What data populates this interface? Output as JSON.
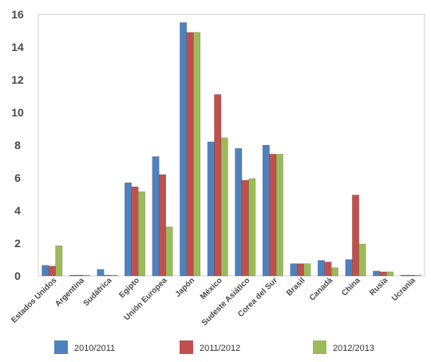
{
  "chart_data": {
    "type": "bar",
    "categories": [
      "Estados Unidos",
      "Argentina",
      "Sudáfrica",
      "Egipto",
      "Unión Europea",
      "Japón",
      "México",
      "Sudeste Asiático",
      "Corea del Sur",
      "Brasil",
      "Canadá",
      "China",
      "Rusia",
      "Ucrania"
    ],
    "series": [
      {
        "name": "2010/2011",
        "color": "#4f81bd",
        "values": [
          0.65,
          0.05,
          0.4,
          5.7,
          7.3,
          15.5,
          8.2,
          7.8,
          8.0,
          0.75,
          0.95,
          1.0,
          0.3,
          0.05
        ]
      },
      {
        "name": "2011/2012",
        "color": "#c0504d",
        "values": [
          0.6,
          0.05,
          0.05,
          5.45,
          6.2,
          14.9,
          11.1,
          5.85,
          7.45,
          0.75,
          0.85,
          4.95,
          0.25,
          0.05
        ]
      },
      {
        "name": "2012/2013",
        "color": "#9bbb59",
        "values": [
          1.85,
          0.05,
          0.05,
          5.15,
          3.0,
          14.9,
          8.45,
          5.95,
          7.45,
          0.75,
          0.5,
          1.95,
          0.25,
          0.05
        ]
      }
    ],
    "ylim": [
      0,
      16
    ],
    "yticks": [
      0,
      2,
      4,
      6,
      8,
      10,
      12,
      14,
      16
    ],
    "grid": false,
    "legend_position": "bottom"
  }
}
